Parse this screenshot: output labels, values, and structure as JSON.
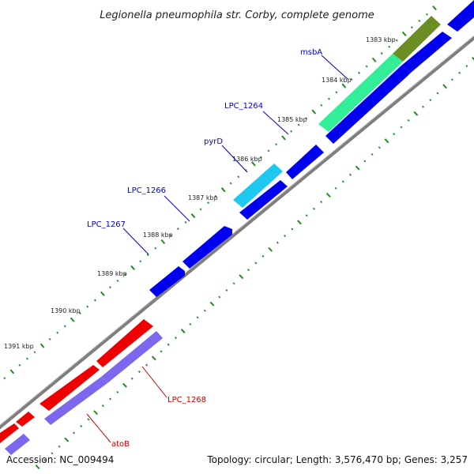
{
  "title": "Legionella pneumophila str. Corby, complete genome",
  "footer": {
    "accession": "Accession: NC_009494",
    "summary": "Topology: circular; Length: 3,576,470 bp; Genes: 3,257"
  },
  "scale_labels": [
    "1383 kbp",
    "1384 kbp",
    "1385 kbp",
    "1386 kbp",
    "1387 kbp",
    "1388 kbp",
    "1389 kbp",
    "1390 kbp",
    "1391 kbp"
  ],
  "gene_labels": [
    {
      "name": "msbA",
      "color": "#0000cc"
    },
    {
      "name": "LPC_1264",
      "color": "#0000cc"
    },
    {
      "name": "pyrD",
      "color": "#0000cc"
    },
    {
      "name": "LPC_1266",
      "color": "#0000cc"
    },
    {
      "name": "LPC_1267",
      "color": "#0000cc"
    },
    {
      "name": "LPC_1268",
      "color": "#cc0000"
    },
    {
      "name": "atoB",
      "color": "#cc0000"
    }
  ],
  "colors": {
    "backbone": "#7f7f7f",
    "forward_gene": "#0000ee",
    "reverse_gene_red": "#ee0000",
    "reverse_gene_purple": "#7b68ee",
    "highlight_green": "#33ee99",
    "highlight_olive": "#6b8e23",
    "highlight_cyan": "#1ec8ee",
    "tick": "#228b22",
    "label_blue": "#0000cc",
    "label_red": "#cc0000"
  }
}
